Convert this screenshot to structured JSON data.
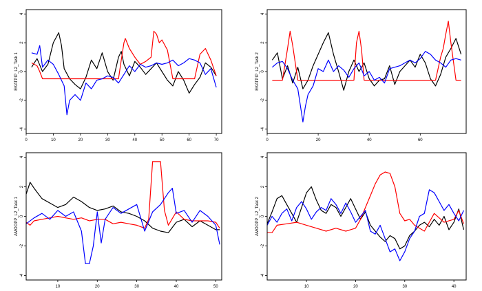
{
  "chart_data": [
    {
      "type": "line",
      "title": "",
      "xlabel": "",
      "ylabel": "EKATPIP_L2_Task 1",
      "xlim": [
        0,
        72
      ],
      "ylim": [
        -4.3,
        4.3
      ],
      "xticks": [
        0,
        10,
        20,
        30,
        40,
        50,
        60,
        70
      ],
      "yticks": [
        -4,
        -2,
        0,
        2,
        4
      ],
      "series": [
        {
          "color": "#000000",
          "x": [
            2,
            4,
            6,
            8,
            10,
            12,
            13,
            14,
            16,
            18,
            20,
            22,
            24,
            26,
            28,
            30,
            32,
            34,
            35,
            36,
            38,
            40,
            42,
            44,
            46,
            48,
            50,
            52,
            54,
            56,
            58,
            60,
            62,
            64,
            66,
            68,
            70
          ],
          "y": [
            0.3,
            0.9,
            0.0,
            0.5,
            2.0,
            2.7,
            1.8,
            0.2,
            -0.5,
            -0.9,
            -1.2,
            -0.4,
            0.8,
            0.2,
            1.3,
            0.0,
            -0.6,
            1.0,
            1.4,
            0.5,
            -0.3,
            0.7,
            0.3,
            -0.2,
            0.2,
            0.6,
            0.0,
            -0.6,
            -1.0,
            0.0,
            -0.6,
            -1.5,
            -0.9,
            -0.4,
            0.6,
            0.3,
            -0.3
          ]
        },
        {
          "color": "#ff0000",
          "x": [
            2,
            4,
            5,
            6,
            8,
            10,
            12,
            14,
            20,
            30,
            34,
            35,
            36,
            36.5,
            38,
            40,
            42,
            44,
            46,
            47,
            48,
            49,
            50,
            52,
            54,
            60,
            62,
            64,
            66,
            68,
            70
          ],
          "y": [
            0.6,
            0.4,
            0.0,
            -0.5,
            -0.5,
            -0.5,
            -0.5,
            -0.5,
            -0.5,
            -0.5,
            -0.5,
            0.8,
            2.0,
            2.3,
            1.6,
            1.0,
            0.5,
            0.7,
            1.0,
            2.8,
            2.6,
            2.0,
            2.2,
            1.5,
            -0.5,
            -0.5,
            -0.5,
            1.2,
            1.6,
            0.8,
            -0.3
          ]
        },
        {
          "color": "#0000ff",
          "x": [
            2,
            4,
            5,
            6,
            8,
            10,
            12,
            14,
            15,
            16,
            18,
            20,
            22,
            24,
            26,
            28,
            30,
            32,
            34,
            36,
            38,
            40,
            42,
            44,
            46,
            48,
            50,
            52,
            54,
            56,
            58,
            60,
            62,
            64,
            66,
            68,
            70
          ],
          "y": [
            1.3,
            1.2,
            1.8,
            0.3,
            0.8,
            0.5,
            -0.2,
            -1.0,
            -3.0,
            -2.0,
            -1.6,
            -2.0,
            -0.8,
            -1.2,
            -0.6,
            -0.5,
            -0.3,
            -0.4,
            -0.8,
            -0.2,
            0.4,
            0.0,
            0.5,
            0.3,
            0.4,
            0.6,
            0.5,
            0.6,
            0.8,
            0.4,
            0.6,
            0.9,
            0.8,
            0.6,
            -0.2,
            0.2,
            -1.1
          ]
        }
      ]
    },
    {
      "type": "line",
      "title": "",
      "xlabel": "",
      "ylabel": "EKATPIP_L2_Task 2",
      "xlim": [
        0,
        78
      ],
      "ylim": [
        -4.3,
        4.3
      ],
      "xticks": [
        0,
        20,
        40,
        60
      ],
      "yticks": [
        -4,
        -2,
        0,
        2,
        4
      ],
      "series": [
        {
          "color": "#000000",
          "x": [
            2,
            4,
            6,
            8,
            10,
            12,
            14,
            16,
            18,
            20,
            22,
            24,
            26,
            28,
            30,
            32,
            34,
            36,
            38,
            40,
            42,
            44,
            46,
            48,
            50,
            52,
            54,
            56,
            58,
            60,
            62,
            64,
            66,
            68,
            70,
            72,
            74,
            76
          ],
          "y": [
            0.8,
            1.3,
            -0.5,
            0.4,
            -0.8,
            0.3,
            -1.2,
            -0.6,
            0.4,
            1.2,
            2.0,
            2.7,
            1.2,
            0.0,
            -1.3,
            0.0,
            0.8,
            0.0,
            0.6,
            -0.5,
            -1.0,
            -0.6,
            -0.5,
            0.4,
            -0.9,
            0.0,
            0.4,
            0.8,
            0.3,
            1.2,
            0.6,
            -0.5,
            -1.0,
            -0.2,
            1.0,
            1.6,
            2.3,
            1.2
          ]
        },
        {
          "color": "#ff0000",
          "x": [
            2,
            6,
            8,
            9,
            10,
            11,
            12,
            20,
            30,
            34,
            35,
            36,
            37,
            38,
            40,
            50,
            60,
            66,
            68,
            69,
            70,
            71,
            72,
            74,
            76
          ],
          "y": [
            -0.6,
            -0.6,
            1.6,
            2.8,
            1.8,
            0.6,
            -0.6,
            -0.6,
            -0.6,
            -0.6,
            2.0,
            2.8,
            1.5,
            -0.6,
            -0.6,
            -0.6,
            -0.6,
            -0.6,
            1.0,
            1.6,
            2.6,
            3.5,
            2.0,
            -0.6,
            -0.6
          ]
        },
        {
          "color": "#0000ff",
          "x": [
            2,
            4,
            6,
            8,
            10,
            12,
            14,
            15,
            16,
            18,
            20,
            22,
            24,
            26,
            28,
            30,
            32,
            34,
            36,
            38,
            40,
            42,
            44,
            46,
            48,
            50,
            52,
            54,
            56,
            58,
            60,
            62,
            64,
            66,
            68,
            70,
            72,
            74,
            76
          ],
          "y": [
            0.3,
            0.6,
            0.7,
            0.2,
            -0.6,
            -1.2,
            -3.5,
            -2.4,
            -1.6,
            -1.0,
            0.2,
            0.0,
            0.8,
            0.0,
            0.4,
            0.1,
            -0.4,
            0.2,
            0.6,
            -0.3,
            0.0,
            -0.6,
            -0.4,
            -0.8,
            0.2,
            0.3,
            0.4,
            0.6,
            0.8,
            0.6,
            0.9,
            1.4,
            1.2,
            0.8,
            0.6,
            0.3,
            0.8,
            0.9,
            0.8
          ]
        }
      ]
    },
    {
      "type": "line",
      "title": "",
      "xlabel": "",
      "ylabel": "AMOOPP_L2_Task 1",
      "xlim": [
        2,
        51.5
      ],
      "ylim": [
        -4.3,
        4.3
      ],
      "xticks": [
        10,
        20,
        30,
        40,
        50
      ],
      "yticks": [
        -4,
        -2,
        0,
        2,
        4
      ],
      "series": [
        {
          "color": "#000000",
          "x": [
            2,
            3,
            4,
            6,
            8,
            10,
            12,
            14,
            16,
            18,
            20,
            22,
            24,
            26,
            28,
            30,
            32,
            34,
            36,
            38,
            40,
            42,
            44,
            46,
            48,
            50,
            51
          ],
          "y": [
            1.5,
            2.3,
            1.9,
            1.2,
            0.9,
            0.6,
            0.8,
            1.3,
            1.0,
            0.6,
            0.4,
            0.5,
            0.7,
            0.3,
            0.2,
            0.0,
            -0.3,
            -0.8,
            -1.0,
            -1.1,
            -0.4,
            -0.2,
            -0.7,
            -0.3,
            -0.6,
            -0.9,
            -0.9
          ]
        },
        {
          "color": "#ff0000",
          "x": [
            2,
            3,
            4,
            6,
            8,
            10,
            12,
            14,
            16,
            18,
            20,
            22,
            24,
            26,
            28,
            30,
            32,
            33,
            34,
            35,
            36,
            37,
            38,
            40,
            42,
            44,
            46,
            48,
            50,
            51
          ],
          "y": [
            -0.4,
            -0.6,
            -0.3,
            -0.2,
            -0.1,
            0.0,
            -0.1,
            -0.2,
            -0.1,
            -0.3,
            -0.2,
            -0.2,
            -0.5,
            -0.4,
            -0.5,
            -0.6,
            -0.8,
            -0.2,
            3.7,
            3.7,
            3.7,
            0.4,
            -0.6,
            0.3,
            -0.2,
            -0.3,
            -0.3,
            -0.3,
            -0.4,
            -0.8
          ]
        },
        {
          "color": "#0000ff",
          "x": [
            2,
            4,
            6,
            8,
            10,
            12,
            14,
            16,
            17,
            18,
            19,
            20,
            21,
            22,
            24,
            26,
            28,
            30,
            32,
            34,
            36,
            38,
            39,
            40,
            42,
            44,
            46,
            48,
            50,
            51
          ],
          "y": [
            -0.5,
            -0.1,
            0.2,
            -0.2,
            0.4,
            0.0,
            0.3,
            -1.0,
            -3.2,
            -3.2,
            -2.0,
            0.3,
            -1.8,
            -0.2,
            0.6,
            0.2,
            0.5,
            0.8,
            -1.0,
            0.3,
            0.8,
            1.6,
            1.9,
            0.2,
            0.4,
            -0.4,
            0.4,
            0.0,
            -0.6,
            -1.9
          ]
        }
      ]
    },
    {
      "type": "line",
      "title": "",
      "xlabel": "",
      "ylabel": "AMOOPP_L2_Task 2",
      "xlim": [
        2,
        42.5
      ],
      "ylim": [
        -4.3,
        4.3
      ],
      "xticks": [
        10,
        20,
        30,
        40
      ],
      "yticks": [
        -4,
        -2,
        0,
        2,
        4
      ],
      "series": [
        {
          "color": "#000000",
          "x": [
            2,
            3,
            4,
            5,
            6,
            7,
            8,
            9,
            10,
            11,
            12,
            13,
            14,
            15,
            16,
            17,
            18,
            19,
            20,
            21,
            22,
            23,
            24,
            25,
            26,
            27,
            28,
            29,
            30,
            31,
            32,
            33,
            34,
            35,
            36,
            37,
            38,
            39,
            40,
            41,
            42
          ],
          "y": [
            -0.5,
            0.3,
            1.2,
            1.4,
            0.8,
            0.2,
            -0.4,
            0.6,
            1.6,
            2.0,
            1.1,
            0.4,
            0.2,
            0.8,
            0.6,
            0.0,
            0.6,
            1.2,
            0.5,
            -0.2,
            0.3,
            -0.6,
            -1.0,
            -1.4,
            -1.7,
            -1.3,
            -1.5,
            -2.2,
            -2.0,
            -1.3,
            -1.0,
            -0.6,
            -0.4,
            -0.7,
            -0.2,
            -0.6,
            0.0,
            -0.9,
            -0.4,
            0.5,
            -0.9
          ]
        },
        {
          "color": "#ff0000",
          "x": [
            2,
            3,
            4,
            6,
            8,
            10,
            12,
            14,
            16,
            18,
            20,
            21,
            22,
            23,
            24,
            25,
            26,
            27,
            28,
            29,
            30,
            31,
            32,
            34,
            36,
            38,
            40,
            41,
            42
          ],
          "y": [
            -1.1,
            -1.1,
            -0.6,
            -0.5,
            -0.4,
            -0.6,
            -0.8,
            -1.0,
            -0.8,
            -1.0,
            -0.8,
            -0.2,
            0.6,
            1.4,
            2.2,
            2.8,
            3.0,
            2.9,
            2.0,
            0.2,
            -0.3,
            -0.2,
            -0.6,
            -1.0,
            0.2,
            -0.4,
            -0.2,
            0.4,
            -0.5
          ]
        },
        {
          "color": "#0000ff",
          "x": [
            2,
            3,
            4,
            5,
            6,
            7,
            8,
            9,
            10,
            11,
            12,
            13,
            14,
            15,
            16,
            17,
            18,
            19,
            20,
            21,
            22,
            23,
            24,
            25,
            26,
            27,
            28,
            29,
            30,
            31,
            32,
            33,
            34,
            35,
            36,
            37,
            38,
            39,
            40,
            41,
            42
          ],
          "y": [
            -0.6,
            0.0,
            -0.4,
            0.2,
            0.5,
            -0.3,
            0.6,
            1.0,
            0.5,
            -0.2,
            0.3,
            0.6,
            0.4,
            1.2,
            0.8,
            0.2,
            0.9,
            0.3,
            -0.4,
            0.0,
            0.4,
            -1.0,
            -1.2,
            -0.6,
            -1.5,
            -2.4,
            -2.2,
            -3.0,
            -2.4,
            -1.5,
            -1.0,
            0.0,
            0.2,
            1.8,
            1.6,
            1.0,
            0.4,
            0.8,
            0.2,
            -0.3,
            0.4
          ]
        }
      ]
    }
  ]
}
